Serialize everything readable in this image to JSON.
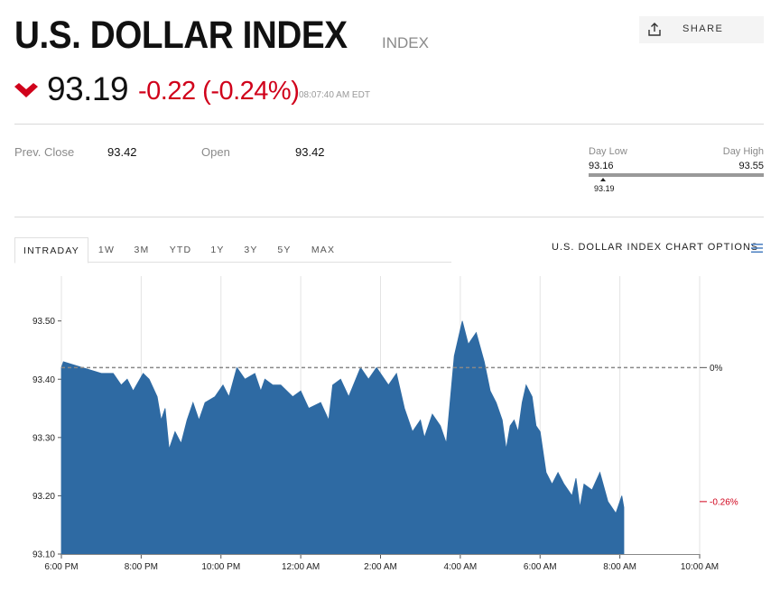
{
  "header": {
    "title": "U.S. DOLLAR INDEX",
    "type": "INDEX",
    "share_label": "SHARE",
    "share_icon": "share-upload-icon",
    "price": "93.19",
    "change": "-0.22 (-0.24%)",
    "time": "08:07:40 AM EDT",
    "direction_icon": "chevron-down-icon",
    "down_color": "#d0021b"
  },
  "stats": {
    "prev_close_label": "Prev. Close",
    "prev_close_value": "93.42",
    "open_label": "Open",
    "open_value": "93.42",
    "day_low_label": "Day Low",
    "day_low_value": "93.16",
    "day_high_label": "Day High",
    "day_high_value": "93.55",
    "current_value": "93.19"
  },
  "tabs": [
    {
      "label": "INTRADAY",
      "active": true
    },
    {
      "label": "1W"
    },
    {
      "label": "3M"
    },
    {
      "label": "YTD"
    },
    {
      "label": "1Y"
    },
    {
      "label": "3Y"
    },
    {
      "label": "5Y"
    },
    {
      "label": "MAX"
    }
  ],
  "options_label": "U.S. DOLLAR INDEX CHART OPTIONS",
  "options_icon": "hamburger-menu-icon",
  "chart_data": {
    "type": "area",
    "title": "",
    "xlabel": "",
    "ylabel": "",
    "x_ticks": [
      "6:00 PM",
      "8:00 PM",
      "10:00 PM",
      "12:00 AM",
      "2:00 AM",
      "4:00 AM",
      "6:00 AM",
      "8:00 AM",
      "10:00 AM"
    ],
    "x_range_hours": [
      0,
      16
    ],
    "y_ticks": [
      "93.10",
      "93.20",
      "93.30",
      "93.40",
      "93.50"
    ],
    "ylim": [
      93.1,
      93.58
    ],
    "grid": "vertical",
    "fill_color": "#2e6aa3",
    "reference_line": {
      "value": 93.42,
      "label": "0%"
    },
    "right_annotation": {
      "value": 93.19,
      "label": "-0.26%",
      "color": "#d0021b"
    },
    "x": [
      0,
      0.05,
      1.0,
      1.3,
      1.5,
      1.65,
      1.8,
      2.05,
      2.2,
      2.4,
      2.5,
      2.6,
      2.7,
      2.85,
      3.0,
      3.15,
      3.3,
      3.45,
      3.6,
      3.85,
      4.05,
      4.2,
      4.4,
      4.6,
      4.85,
      5.0,
      5.1,
      5.3,
      5.5,
      5.8,
      6.0,
      6.2,
      6.5,
      6.7,
      6.8,
      7.0,
      7.2,
      7.5,
      7.7,
      7.9,
      8.0,
      8.2,
      8.4,
      8.6,
      8.8,
      9.0,
      9.1,
      9.3,
      9.5,
      9.65,
      9.85,
      10.05,
      10.2,
      10.4,
      10.6,
      10.75,
      10.9,
      11.05,
      11.15,
      11.25,
      11.35,
      11.45,
      11.55,
      11.65,
      11.8,
      11.9,
      12.0,
      12.15,
      12.3,
      12.45,
      12.6,
      12.8,
      12.9,
      13.0,
      13.1,
      13.3,
      13.5,
      13.7,
      13.9,
      14.05,
      14.1
    ],
    "y": [
      93.42,
      93.43,
      93.41,
      93.41,
      93.39,
      93.4,
      93.38,
      93.41,
      93.4,
      93.37,
      93.33,
      93.35,
      93.28,
      93.31,
      93.29,
      93.33,
      93.36,
      93.33,
      93.36,
      93.37,
      93.39,
      93.37,
      93.42,
      93.4,
      93.41,
      93.38,
      93.4,
      93.39,
      93.39,
      93.37,
      93.38,
      93.35,
      93.36,
      93.33,
      93.39,
      93.4,
      93.37,
      93.42,
      93.4,
      93.42,
      93.41,
      93.39,
      93.41,
      93.35,
      93.31,
      93.33,
      93.3,
      93.34,
      93.32,
      93.29,
      93.44,
      93.5,
      93.46,
      93.48,
      93.43,
      93.38,
      93.36,
      93.33,
      93.28,
      93.32,
      93.33,
      93.31,
      93.36,
      93.39,
      93.37,
      93.32,
      93.31,
      93.24,
      93.22,
      93.24,
      93.22,
      93.2,
      93.23,
      93.18,
      93.22,
      93.21,
      93.24,
      93.19,
      93.17,
      93.2,
      93.18
    ]
  }
}
